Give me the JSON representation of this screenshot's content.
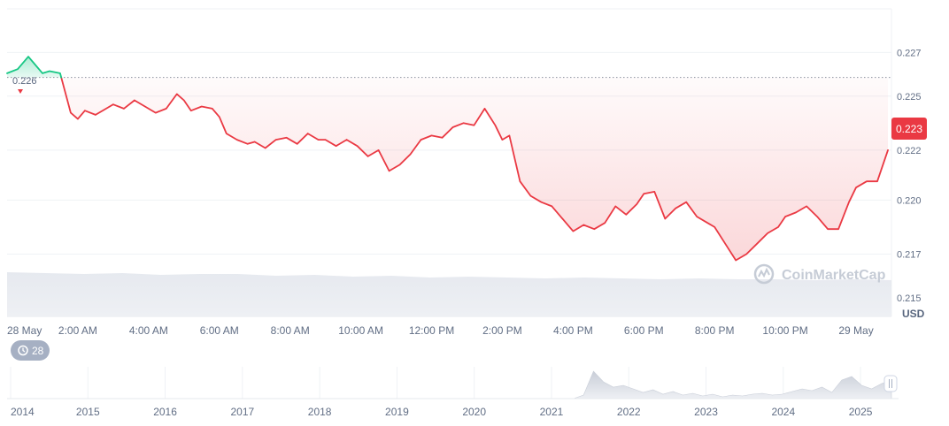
{
  "chart_data": {
    "type": "line",
    "currency": "USD",
    "reference_value": "0.226",
    "current_price": "0.223",
    "y_ticks": [
      "0.227",
      "0.225",
      "0.222",
      "0.220",
      "0.217",
      "0.215"
    ],
    "y_tick_values": [
      0.2272,
      0.2251,
      0.2225,
      0.2201,
      0.2175,
      0.2154
    ],
    "ylim": [
      0.2145,
      0.2293
    ],
    "x_tick_labels": [
      "28 May",
      "2:00 AM",
      "4:00 AM",
      "6:00 AM",
      "8:00 AM",
      "10:00 AM",
      "12:00 PM",
      "2:00 PM",
      "4:00 PM",
      "6:00 PM",
      "8:00 PM",
      "10:00 PM",
      "29 May"
    ],
    "x_tick_hours": [
      0,
      2,
      4,
      6,
      8,
      10,
      12,
      14,
      16,
      18,
      20,
      22,
      24
    ],
    "x_range_hours": [
      0,
      25.0
    ],
    "line_colors": {
      "up": "#16c784",
      "down": "#ea3943"
    },
    "series": [
      {
        "x_hours": [
          0,
          0.3,
          0.6,
          0.8,
          1.0,
          1.2,
          1.5,
          1.8,
          2.0,
          2.2,
          2.5,
          2.8,
          3.0,
          3.3,
          3.6,
          3.9,
          4.2,
          4.5,
          4.8,
          5.0,
          5.2,
          5.5,
          5.8,
          6.0,
          6.2,
          6.5,
          6.8,
          7.0,
          7.3,
          7.6,
          7.9,
          8.2,
          8.5,
          8.8,
          9.0,
          9.3,
          9.6,
          9.9,
          10.2,
          10.5,
          10.8,
          11.1,
          11.4,
          11.7,
          12.0,
          12.3,
          12.6,
          12.9,
          13.2,
          13.5,
          13.8,
          14.0,
          14.2,
          14.5,
          14.8,
          15.1,
          15.4,
          15.7,
          16.0,
          16.3,
          16.6,
          16.9,
          17.2,
          17.5,
          17.8,
          18.0,
          18.3,
          18.6,
          18.9,
          19.2,
          19.5,
          19.8,
          20.0,
          20.3,
          20.6,
          20.9,
          21.2,
          21.5,
          21.8,
          22.0,
          22.3,
          22.6,
          22.9,
          23.2,
          23.5,
          23.8,
          24.0,
          24.3,
          24.6,
          24.9
        ],
        "values": [
          0.2262,
          0.2264,
          0.227,
          0.2266,
          0.2262,
          0.2263,
          0.2262,
          0.2243,
          0.224,
          0.2244,
          0.2242,
          0.2245,
          0.2247,
          0.2245,
          0.2249,
          0.2246,
          0.2243,
          0.2245,
          0.2252,
          0.2249,
          0.2244,
          0.2246,
          0.2245,
          0.2241,
          0.2233,
          0.223,
          0.2228,
          0.2229,
          0.2226,
          0.223,
          0.2231,
          0.2228,
          0.2233,
          0.223,
          0.223,
          0.2227,
          0.223,
          0.2227,
          0.2222,
          0.2225,
          0.2215,
          0.2218,
          0.2223,
          0.223,
          0.2232,
          0.2231,
          0.2236,
          0.2238,
          0.2237,
          0.2245,
          0.2237,
          0.223,
          0.2232,
          0.221,
          0.2203,
          0.22,
          0.2198,
          0.2192,
          0.2186,
          0.2189,
          0.2187,
          0.219,
          0.2198,
          0.2194,
          0.2199,
          0.2204,
          0.2205,
          0.2192,
          0.2197,
          0.22,
          0.2193,
          0.219,
          0.2188,
          0.218,
          0.2172,
          0.2175,
          0.218,
          0.2185,
          0.2188,
          0.2193,
          0.2195,
          0.2198,
          0.2193,
          0.2187,
          0.2187,
          0.22,
          0.2207,
          0.221,
          0.221,
          0.2225
        ]
      }
    ],
    "navigator": {
      "x_tick_labels": [
        "2014",
        "2015",
        "2016",
        "2017",
        "2018",
        "2019",
        "2020",
        "2021",
        "2022",
        "2023",
        "2024",
        "2025"
      ],
      "badge_label": "28"
    },
    "watermark": "CoinMarketCap"
  }
}
